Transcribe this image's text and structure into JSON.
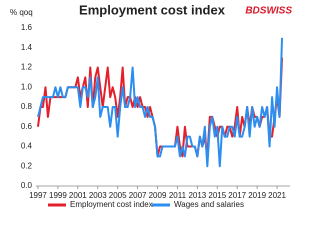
{
  "chart_data": {
    "type": "line",
    "title": "Employment cost index",
    "y_label": "% qoq",
    "logo": "BDSWISS",
    "x": [
      1997,
      1997.25,
      1997.5,
      1997.75,
      1998,
      1998.25,
      1998.5,
      1998.75,
      1999,
      1999.25,
      1999.5,
      1999.75,
      2000,
      2000.25,
      2000.5,
      2000.75,
      2001,
      2001.25,
      2001.5,
      2001.75,
      2002,
      2002.25,
      2002.5,
      2002.75,
      2003,
      2003.25,
      2003.5,
      2003.75,
      2004,
      2004.25,
      2004.5,
      2004.75,
      2005,
      2005.25,
      2005.5,
      2005.75,
      2006,
      2006.25,
      2006.5,
      2006.75,
      2007,
      2007.25,
      2007.5,
      2007.75,
      2008,
      2008.25,
      2008.5,
      2008.75,
      2009,
      2009.25,
      2009.5,
      2009.75,
      2010,
      2010.25,
      2010.5,
      2010.75,
      2011,
      2011.25,
      2011.5,
      2011.75,
      2012,
      2012.25,
      2012.5,
      2012.75,
      2013,
      2013.25,
      2013.5,
      2013.75,
      2014,
      2014.25,
      2014.5,
      2014.75,
      2015,
      2015.25,
      2015.5,
      2015.75,
      2016,
      2016.25,
      2016.5,
      2016.75,
      2017,
      2017.25,
      2017.5,
      2017.75,
      2018,
      2018.25,
      2018.5,
      2018.75,
      2019,
      2019.25,
      2019.5,
      2019.75,
      2020,
      2020.25,
      2020.5,
      2020.75,
      2021,
      2021.25,
      2021.5
    ],
    "series": [
      {
        "name": "Employment cost index",
        "color": "#e3202b",
        "values": [
          0.6,
          0.8,
          0.8,
          1.0,
          0.7,
          0.9,
          0.9,
          0.9,
          0.9,
          0.9,
          0.9,
          0.9,
          1.0,
          1.0,
          1.0,
          1.0,
          1.1,
          0.9,
          1.0,
          1.1,
          0.8,
          1.2,
          0.8,
          1.1,
          1.2,
          1.0,
          0.8,
          1.0,
          1.2,
          0.9,
          1.0,
          0.9,
          0.7,
          0.9,
          1.2,
          0.8,
          0.9,
          0.9,
          0.8,
          0.9,
          0.8,
          0.9,
          0.8,
          0.8,
          0.7,
          0.8,
          0.7,
          0.6,
          0.3,
          0.4,
          0.4,
          0.4,
          0.4,
          0.4,
          0.4,
          0.4,
          0.6,
          0.4,
          0.3,
          0.6,
          0.4,
          0.4,
          0.4,
          0.4,
          0.3,
          0.5,
          0.4,
          0.5,
          0.3,
          0.7,
          0.7,
          0.6,
          0.5,
          0.6,
          0.6,
          0.5,
          0.6,
          0.6,
          0.5,
          0.6,
          0.8,
          0.5,
          0.7,
          0.6,
          0.8,
          0.6,
          0.8,
          0.7,
          0.7,
          0.6,
          0.7,
          0.7,
          0.8,
          0.5,
          0.5,
          0.7,
          0.9,
          0.7,
          1.3
        ]
      },
      {
        "name": "Wages and salaries",
        "color": "#2b8ef0",
        "values": [
          0.7,
          0.8,
          0.9,
          0.9,
          0.9,
          0.9,
          0.9,
          1.0,
          0.9,
          1.0,
          0.9,
          0.9,
          1.0,
          1.0,
          1.0,
          1.0,
          1.0,
          0.8,
          1.0,
          1.0,
          0.9,
          1.1,
          0.8,
          0.9,
          1.1,
          0.7,
          0.8,
          0.8,
          0.8,
          0.6,
          0.8,
          0.8,
          0.5,
          0.8,
          1.0,
          0.8,
          0.8,
          0.9,
          1.2,
          0.8,
          0.9,
          0.8,
          0.8,
          0.7,
          0.8,
          0.7,
          0.7,
          0.6,
          0.3,
          0.3,
          0.4,
          0.4,
          0.4,
          0.4,
          0.4,
          0.4,
          0.5,
          0.3,
          0.4,
          0.3,
          0.5,
          0.5,
          0.4,
          0.4,
          0.3,
          0.5,
          0.4,
          0.6,
          0.2,
          0.6,
          0.7,
          0.5,
          0.6,
          0.2,
          0.6,
          0.5,
          0.5,
          0.6,
          0.6,
          0.5,
          0.7,
          0.5,
          0.5,
          0.6,
          0.8,
          0.5,
          0.8,
          0.6,
          0.7,
          0.6,
          0.8,
          0.7,
          0.8,
          0.4,
          0.9,
          0.6,
          1.0,
          0.7,
          1.5
        ]
      }
    ],
    "xlim": [
      1996.8,
      2022.3
    ],
    "xticks": [
      1997,
      1999,
      2001,
      2003,
      2005,
      2007,
      2009,
      2011,
      2013,
      2015,
      2017,
      2019,
      2021
    ],
    "ylim": [
      0,
      1.6
    ],
    "yticks": [
      {
        "value": 0,
        "label": "0.0"
      },
      {
        "value": 0.2,
        "label": "0.2"
      },
      {
        "value": 0.4,
        "label": "0.4"
      },
      {
        "value": 0.6,
        "label": "0.6"
      },
      {
        "value": 0.8,
        "label": "0.8"
      },
      {
        "value": 1,
        "label": "1.0"
      },
      {
        "value": 1.2,
        "label": "1.2"
      },
      {
        "value": 1.4,
        "label": "1.4"
      },
      {
        "value": 1.6,
        "label": "1.6"
      }
    ],
    "grid": false,
    "legend": "bottom"
  }
}
